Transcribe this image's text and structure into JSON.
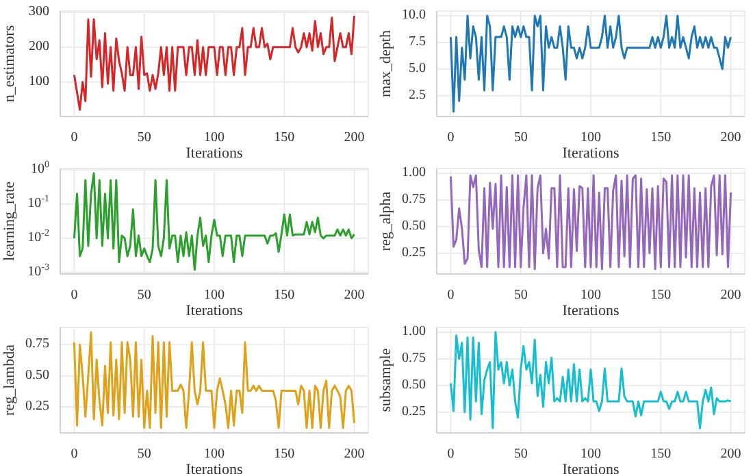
{
  "chart_data": [
    {
      "type": "line",
      "xlabel": "Iterations",
      "ylabel": "n_estimators",
      "grid": true,
      "xlim": [
        -10,
        210
      ],
      "xticks": [
        0,
        50,
        100,
        150,
        200
      ],
      "ylim": [
        1,
        304
      ],
      "yticks": [
        100,
        200,
        300
      ],
      "x": [
        0,
        2,
        4,
        6,
        8,
        10,
        12,
        14,
        16,
        18,
        20,
        22,
        24,
        26,
        28,
        30,
        32,
        34,
        36,
        38,
        40,
        42,
        44,
        46,
        48,
        50,
        52,
        54,
        56,
        58,
        60,
        62,
        64,
        66,
        68,
        70,
        72,
        74,
        76,
        78,
        80,
        82,
        84,
        86,
        88,
        90,
        92,
        94,
        96,
        98,
        100,
        102,
        104,
        106,
        108,
        110,
        112,
        114,
        116,
        118,
        120,
        122,
        124,
        126,
        128,
        130,
        132,
        134,
        136,
        138,
        140,
        142,
        144,
        146,
        148,
        150,
        152,
        154,
        156,
        158,
        160,
        162,
        164,
        166,
        168,
        170,
        172,
        174,
        176,
        178,
        180,
        182,
        184,
        186,
        188,
        190,
        192,
        194,
        196,
        198,
        200
      ],
      "series": [
        {
          "color": "#d62728",
          "values": [
            120,
            70,
            20,
            100,
            45,
            280,
            115,
            280,
            165,
            220,
            85,
            240,
            95,
            200,
            75,
            225,
            160,
            125,
            75,
            200,
            120,
            120,
            200,
            80,
            230,
            120,
            125,
            75,
            120,
            80,
            125,
            200,
            120,
            200,
            75,
            200,
            75,
            200,
            200,
            200,
            120,
            200,
            200,
            120,
            220,
            120,
            200,
            120,
            200,
            200,
            200,
            120,
            200,
            200,
            120,
            200,
            200,
            120,
            200,
            200,
            255,
            120,
            200,
            200,
            255,
            200,
            200,
            255,
            200,
            210,
            165,
            200,
            200,
            200,
            200,
            200,
            200,
            200,
            255,
            200,
            185,
            200,
            240,
            200,
            240,
            190,
            275,
            200,
            240,
            180,
            200,
            200,
            285,
            160,
            200,
            240,
            200,
            200,
            240,
            180,
            290
          ]
        }
      ]
    },
    {
      "type": "line",
      "xlabel": "Iterations",
      "ylabel": "max_depth",
      "grid": true,
      "xlim": [
        -10,
        210
      ],
      "xticks": [
        0,
        50,
        100,
        150,
        200
      ],
      "ylim": [
        0.55,
        10.45
      ],
      "yticks": [
        2.5,
        {
          "value": 5,
          "label": "5.0"
        },
        7.5,
        {
          "value": 10,
          "label": "10.0"
        }
      ],
      "x": [
        0,
        2,
        4,
        6,
        8,
        10,
        12,
        14,
        16,
        18,
        20,
        22,
        24,
        26,
        28,
        30,
        32,
        34,
        36,
        38,
        40,
        42,
        44,
        46,
        48,
        50,
        52,
        54,
        56,
        58,
        60,
        62,
        64,
        66,
        68,
        70,
        72,
        74,
        76,
        78,
        80,
        82,
        84,
        86,
        88,
        90,
        92,
        94,
        96,
        98,
        100,
        102,
        104,
        106,
        108,
        110,
        112,
        114,
        116,
        118,
        120,
        122,
        124,
        126,
        128,
        130,
        132,
        134,
        136,
        138,
        140,
        142,
        144,
        146,
        148,
        150,
        152,
        154,
        156,
        158,
        160,
        162,
        164,
        166,
        168,
        170,
        172,
        174,
        176,
        178,
        180,
        182,
        184,
        186,
        188,
        190,
        192,
        194,
        196,
        198,
        200
      ],
      "series": [
        {
          "color": "#1f77b4",
          "values": [
            8,
            1,
            8,
            2,
            7,
            4,
            10,
            6,
            9,
            8,
            4,
            8,
            3,
            10,
            9,
            3,
            8,
            8,
            8,
            9,
            8,
            4,
            9,
            8,
            9,
            8,
            9,
            8,
            8,
            3,
            10,
            9,
            10,
            3,
            9,
            7,
            8,
            7,
            7,
            9,
            7,
            4,
            9,
            7,
            7,
            6,
            7,
            6,
            7,
            9,
            7,
            7,
            7,
            7,
            8,
            10,
            7,
            9,
            7,
            8,
            10,
            7,
            6,
            7,
            7,
            7,
            7,
            7,
            7,
            7,
            7,
            7,
            8,
            7,
            8,
            7,
            8,
            10,
            7,
            8,
            7,
            10,
            7,
            8,
            7,
            6,
            8,
            9,
            7,
            8,
            7,
            8,
            7,
            8,
            7,
            7,
            6,
            5,
            8,
            7,
            8
          ]
        }
      ]
    },
    {
      "type": "line",
      "xlabel": "Iterations",
      "ylabel": "learning_rate",
      "grid": true,
      "log": true,
      "xlim": [
        -10,
        210
      ],
      "xticks": [
        0,
        50,
        100,
        150,
        200
      ],
      "ylim": [
        0.0009,
        1.1
      ],
      "yticks": [
        {
          "value": 0.001,
          "label": "10$^{-3}$"
        },
        {
          "value": 0.01,
          "label": "10$^{-2}$"
        },
        {
          "value": 0.1,
          "label": "10$^{-1}$"
        },
        {
          "value": 1,
          "label": "10$^{0}$"
        }
      ],
      "x": [
        0,
        2,
        4,
        6,
        8,
        10,
        12,
        14,
        16,
        18,
        20,
        22,
        24,
        26,
        28,
        30,
        32,
        34,
        36,
        38,
        40,
        42,
        44,
        46,
        48,
        50,
        52,
        54,
        56,
        58,
        60,
        62,
        64,
        66,
        68,
        70,
        72,
        74,
        76,
        78,
        80,
        82,
        84,
        86,
        88,
        90,
        92,
        94,
        96,
        98,
        100,
        102,
        104,
        106,
        108,
        110,
        112,
        114,
        116,
        118,
        120,
        122,
        124,
        126,
        128,
        130,
        132,
        134,
        136,
        138,
        140,
        142,
        144,
        146,
        148,
        150,
        152,
        154,
        156,
        158,
        160,
        162,
        164,
        166,
        168,
        170,
        172,
        174,
        176,
        178,
        180,
        182,
        184,
        186,
        188,
        190,
        192,
        194,
        196,
        198,
        200
      ],
      "series": [
        {
          "color": "#2ca02c",
          "values": [
            0.01,
            0.2,
            0.003,
            0.005,
            0.5,
            0.006,
            0.2,
            0.8,
            0.01,
            0.5,
            0.006,
            0.2,
            0.01,
            0.5,
            0.005,
            0.5,
            0.002,
            0.012,
            0.01,
            0.003,
            0.006,
            0.07,
            0.003,
            0.012,
            0.003,
            0.005,
            0.003,
            0.002,
            0.005,
            0.5,
            0.006,
            0.003,
            0.01,
            0.5,
            0.005,
            0.012,
            0.012,
            0.002,
            0.012,
            0.003,
            0.015,
            0.003,
            0.012,
            0.0012,
            0.012,
            0.04,
            0.006,
            0.012,
            0.002,
            0.012,
            0.035,
            0.012,
            0.012,
            0.003,
            0.012,
            0.012,
            0.012,
            0.002,
            0.012,
            0.012,
            0.003,
            0.012,
            0.012,
            0.012,
            0.012,
            0.012,
            0.012,
            0.012,
            0.012,
            0.007,
            0.012,
            0.012,
            0.014,
            0.004,
            0.013,
            0.05,
            0.012,
            0.05,
            0.012,
            0.013,
            0.013,
            0.013,
            0.013,
            0.03,
            0.013,
            0.03,
            0.015,
            0.04,
            0.012,
            0.01,
            0.012,
            0.012,
            0.012,
            0.012,
            0.018,
            0.012,
            0.018,
            0.012,
            0.018,
            0.01,
            0.013
          ]
        }
      ]
    },
    {
      "type": "line",
      "xlabel": "Iterations",
      "ylabel": "reg_alpha",
      "grid": true,
      "xlim": [
        -10,
        210
      ],
      "xticks": [
        0,
        50,
        100,
        150,
        200
      ],
      "ylim": [
        0.055,
        1.045
      ],
      "yticks": [
        0.25,
        {
          "value": 0.5,
          "label": "0.50"
        },
        0.75,
        {
          "value": 1,
          "label": "1.00"
        }
      ],
      "x": [
        0,
        2,
        4,
        6,
        8,
        10,
        12,
        14,
        16,
        18,
        20,
        22,
        24,
        26,
        28,
        30,
        32,
        34,
        36,
        38,
        40,
        42,
        44,
        46,
        48,
        50,
        52,
        54,
        56,
        58,
        60,
        62,
        64,
        66,
        68,
        70,
        72,
        74,
        76,
        78,
        80,
        82,
        84,
        86,
        88,
        90,
        92,
        94,
        96,
        98,
        100,
        102,
        104,
        106,
        108,
        110,
        112,
        114,
        116,
        118,
        120,
        122,
        124,
        126,
        128,
        130,
        132,
        134,
        136,
        138,
        140,
        142,
        144,
        146,
        148,
        150,
        152,
        154,
        156,
        158,
        160,
        162,
        164,
        166,
        168,
        170,
        172,
        174,
        176,
        178,
        180,
        182,
        184,
        186,
        188,
        190,
        192,
        194,
        196,
        198,
        200
      ],
      "series": [
        {
          "color": "#9467bd",
          "values": [
            0.97,
            0.31,
            0.38,
            0.67,
            0.48,
            0.15,
            0.2,
            0.98,
            0.87,
            0.98,
            0.28,
            0.12,
            0.86,
            0.12,
            0.91,
            0.48,
            0.9,
            0.12,
            0.98,
            0.12,
            0.87,
            0.12,
            0.98,
            0.12,
            0.98,
            0.12,
            0.68,
            0.98,
            0.12,
            0.98,
            0.1,
            0.86,
            0.98,
            0.25,
            0.48,
            0.2,
            0.86,
            0.86,
            0.12,
            0.98,
            0.12,
            0.12,
            0.86,
            0.12,
            0.85,
            0.27,
            0.88,
            0.86,
            0.12,
            0.86,
            0.12,
            0.98,
            0.12,
            0.82,
            0.1,
            0.86,
            0.86,
            0.12,
            0.84,
            0.98,
            0.12,
            0.93,
            0.22,
            0.98,
            0.12,
            0.95,
            0.98,
            0.12,
            0.95,
            0.12,
            0.85,
            0.25,
            0.86,
            0.1,
            0.88,
            0.12,
            0.95,
            0.92,
            0.12,
            0.98,
            0.12,
            0.98,
            0.12,
            0.98,
            0.21,
            0.98,
            0.12,
            0.86,
            0.12,
            0.82,
            0.12,
            0.86,
            0.12,
            0.88,
            0.98,
            0.23,
            0.98,
            0.24,
            0.98,
            0.12,
            0.82
          ]
        }
      ]
    },
    {
      "type": "line",
      "xlabel": "Iterations",
      "ylabel": "reg_lambda",
      "grid": true,
      "xlim": [
        -10,
        210
      ],
      "xticks": [
        0,
        50,
        100,
        150,
        200
      ],
      "ylim": [
        0.04,
        0.89
      ],
      "yticks": [
        0.25,
        {
          "value": 0.5,
          "label": "0.50"
        },
        0.75
      ],
      "x": [
        0,
        2,
        4,
        6,
        8,
        10,
        12,
        14,
        16,
        18,
        20,
        22,
        24,
        26,
        28,
        30,
        32,
        34,
        36,
        38,
        40,
        42,
        44,
        46,
        48,
        50,
        52,
        54,
        56,
        58,
        60,
        62,
        64,
        66,
        68,
        70,
        72,
        74,
        76,
        78,
        80,
        82,
        84,
        86,
        88,
        90,
        92,
        94,
        96,
        98,
        100,
        102,
        104,
        106,
        108,
        110,
        112,
        114,
        116,
        118,
        120,
        122,
        124,
        126,
        128,
        130,
        132,
        134,
        136,
        138,
        140,
        142,
        144,
        146,
        148,
        150,
        152,
        154,
        156,
        158,
        160,
        162,
        164,
        166,
        168,
        170,
        172,
        174,
        176,
        178,
        180,
        182,
        184,
        186,
        188,
        190,
        192,
        194,
        196,
        198,
        200
      ],
      "series": [
        {
          "color": "#e0a119",
          "values": [
            0.77,
            0.1,
            0.75,
            0.5,
            0.17,
            0.5,
            0.85,
            0.15,
            0.63,
            0.3,
            0.1,
            0.58,
            0.2,
            0.77,
            0.18,
            0.63,
            0.15,
            0.77,
            0.2,
            0.77,
            0.63,
            0.17,
            0.77,
            0.17,
            0.63,
            0.08,
            0.38,
            0.08,
            0.82,
            0.2,
            0.77,
            0.08,
            0.77,
            0.17,
            0.77,
            0.38,
            0.38,
            0.38,
            0.43,
            0.38,
            0.08,
            0.38,
            0.77,
            0.38,
            0.27,
            0.38,
            0.77,
            0.38,
            0.38,
            0.38,
            0.08,
            0.38,
            0.48,
            0.38,
            0.27,
            0.08,
            0.38,
            0.1,
            0.38,
            0.38,
            0.2,
            0.77,
            0.38,
            0.38,
            0.42,
            0.38,
            0.42,
            0.38,
            0.38,
            0.38,
            0.38,
            0.38,
            0.3,
            0.08,
            0.38,
            0.38,
            0.38,
            0.38,
            0.38,
            0.38,
            0.27,
            0.42,
            0.38,
            0.08,
            0.38,
            0.08,
            0.42,
            0.38,
            0.08,
            0.38,
            0.46,
            0.08,
            0.38,
            0.42,
            0.38,
            0.33,
            0.08,
            0.38,
            0.42,
            0.38,
            0.12
          ]
        }
      ]
    },
    {
      "type": "line",
      "xlabel": "Iterations",
      "ylabel": "subsample",
      "grid": true,
      "xlim": [
        -10,
        210
      ],
      "xticks": [
        0,
        50,
        100,
        150,
        200
      ],
      "ylim": [
        0.055,
        1.045
      ],
      "yticks": [
        0.25,
        {
          "value": 0.5,
          "label": "0.50"
        },
        0.75,
        {
          "value": 1,
          "label": "1.00"
        }
      ],
      "x": [
        0,
        2,
        4,
        6,
        8,
        10,
        12,
        14,
        16,
        18,
        20,
        22,
        24,
        26,
        28,
        30,
        32,
        34,
        36,
        38,
        40,
        42,
        44,
        46,
        48,
        50,
        52,
        54,
        56,
        58,
        60,
        62,
        64,
        66,
        68,
        70,
        72,
        74,
        76,
        78,
        80,
        82,
        84,
        86,
        88,
        90,
        92,
        94,
        96,
        98,
        100,
        102,
        104,
        106,
        108,
        110,
        112,
        114,
        116,
        118,
        120,
        122,
        124,
        126,
        128,
        130,
        132,
        134,
        136,
        138,
        140,
        142,
        144,
        146,
        148,
        150,
        152,
        154,
        156,
        158,
        160,
        162,
        164,
        166,
        168,
        170,
        172,
        174,
        176,
        178,
        180,
        182,
        184,
        186,
        188,
        190,
        192,
        194,
        196,
        198,
        200
      ],
      "series": [
        {
          "color": "#17becf",
          "values": [
            0.52,
            0.26,
            0.97,
            0.75,
            0.9,
            0.25,
            0.95,
            0.18,
            0.95,
            0.35,
            0.9,
            0.23,
            0.55,
            0.65,
            0.72,
            0.1,
            1.0,
            0.65,
            0.72,
            0.52,
            0.72,
            0.5,
            0.65,
            0.35,
            0.2,
            0.65,
            0.87,
            0.65,
            0.72,
            0.52,
            0.93,
            0.4,
            0.6,
            0.3,
            0.72,
            0.52,
            0.76,
            0.35,
            0.38,
            0.35,
            0.58,
            0.35,
            0.65,
            0.35,
            0.7,
            0.35,
            0.65,
            0.35,
            0.38,
            0.35,
            0.65,
            0.35,
            0.35,
            0.26,
            0.35,
            0.66,
            0.35,
            0.35,
            0.35,
            0.35,
            0.35,
            0.66,
            0.4,
            0.35,
            0.35,
            0.35,
            0.21,
            0.35,
            0.22,
            0.35,
            0.35,
            0.35,
            0.35,
            0.35,
            0.35,
            0.44,
            0.35,
            0.35,
            0.28,
            0.35,
            0.35,
            0.44,
            0.35,
            0.35,
            0.44,
            0.35,
            0.35,
            0.35,
            0.35,
            0.1,
            0.35,
            0.46,
            0.35,
            0.48,
            0.23,
            0.38,
            0.35,
            0.35,
            0.35,
            0.36,
            0.35
          ]
        }
      ]
    }
  ]
}
